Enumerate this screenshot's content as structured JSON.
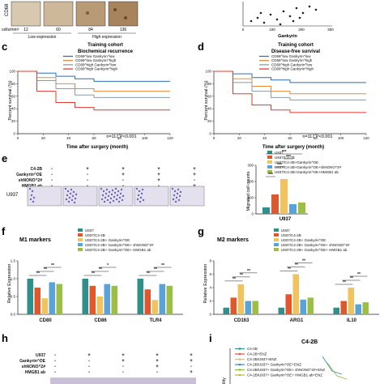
{
  "panels": {
    "top": {
      "ylabel": "CD68",
      "cells_label": "cells/mm²",
      "cell_counts": [
        "12",
        "60",
        "84",
        "136"
      ],
      "group_low": "Low expression",
      "group_high": "High expression",
      "scatter_xlabel": "Gankyrin",
      "scatter_ticks": [
        "0",
        "100",
        "200",
        "300"
      ]
    },
    "c": {
      "letter": "c",
      "title_1": "Training cohort",
      "title_2": "Biochemical recurrence",
      "legend": [
        "CD68^low Gankyrin^low",
        "CD68^low Gankyrin^high",
        "CD68^high Gankyrin^low",
        "CD68^high Gankyrin^high"
      ],
      "ylabel": "Percent survival (%)",
      "xlabel": "Time after surgery (month)",
      "yticks": [
        "0",
        "20",
        "40",
        "60",
        "80",
        "100"
      ],
      "xticks": [
        "0",
        "20",
        "40",
        "60",
        "80",
        "100",
        "120"
      ],
      "annotation": "n=117  P<0.001"
    },
    "d": {
      "letter": "d",
      "title_1": "Training cohort",
      "title_2": "Disease-free survival",
      "legend": [
        "CD68^low Gankyrin^low",
        "CD68^low Gankyrin^high",
        "CD68^high Gankyrin^low",
        "CD68^high Gankyrin^high"
      ],
      "ylabel": "Percent survival (%)",
      "xlabel": "Time after surgery (month)",
      "yticks": [
        "0",
        "20",
        "40",
        "60",
        "80",
        "100"
      ],
      "xticks": [
        "0",
        "20",
        "40",
        "60",
        "80",
        "100",
        "120"
      ],
      "annotation": "n=117  P<0.001"
    },
    "e": {
      "letter": "e",
      "row_labels": [
        "C4-2B",
        "Gankyrin^OE",
        "shNONO^2#",
        "HMGB1 ab"
      ],
      "row_marks": [
        [
          "-",
          "+",
          "+",
          "+",
          "+"
        ],
        [
          "-",
          "-",
          "+",
          "+",
          "+"
        ],
        [
          "-",
          "-",
          "-",
          "+",
          "-"
        ],
        [
          "-",
          "-",
          "-",
          "-",
          "+"
        ]
      ],
      "image_label": "U937",
      "legend": [
        "U937",
        "U937/C4-2B",
        "U937/C4-2B+Gankyrin^OE",
        "U937/C4-2B+Gankyrin^OE+shNONO^2#",
        "U937/C4-2B+Gankyrin^OE+HMGB1 ab"
      ],
      "ylabel": "Migrated cell counts",
      "yticks": [
        "0",
        "100",
        "200",
        "300"
      ],
      "xlabel": "U937",
      "stars": [
        "***",
        "***",
        "***",
        "***"
      ]
    },
    "f": {
      "letter": "f",
      "title": "M1 markers",
      "legend": [
        "U937",
        "U937/C4-2B",
        "U937/C4-2B+ Gankyrin^OE",
        "U937/C4-2B+ Gankyrin^OE+ shNONO^2#",
        "U937/C4-2B+ Gankyrin^OE+ HMGB1 ab"
      ],
      "ylabel": "Relative Expression",
      "yticks": [
        "0.0",
        "0.5",
        "1.0",
        "1.5"
      ],
      "stars": [
        "**",
        "**",
        "**",
        "**",
        "**",
        "*",
        "**",
        "**",
        "**"
      ]
    },
    "g": {
      "letter": "g",
      "title": "M2 markers",
      "legend": [
        "U937",
        "U937/C4-2B",
        "U937/C4-2B+ Gankyrin^OE",
        "U937/C4-2B+ Gankyrin^OE+ shNONO^2#",
        "U937/C4-2B+ Gankyrin^OE+ HMGB1 ab"
      ],
      "ylabel": "Relative Expression",
      "yticks": [
        "0",
        "2",
        "4",
        "6",
        "8"
      ],
      "stars": [
        "**",
        "**",
        "**",
        "**",
        "**",
        "**",
        "**",
        "**",
        "**"
      ]
    },
    "h": {
      "letter": "h",
      "row_labels": [
        "U937",
        "Gankyrin^OE",
        "shNONO^2#",
        "HMGB1 ab"
      ],
      "row_marks": [
        [
          "-",
          "+",
          "+",
          "+",
          "+"
        ],
        [
          "-",
          "-",
          "+",
          "+",
          "+"
        ],
        [
          "-",
          "-",
          "-",
          "+",
          "-"
        ],
        [
          "-",
          "-",
          "-",
          "-",
          "+"
        ]
      ]
    },
    "i": {
      "letter": "i",
      "title": "C4-2B",
      "legend": [
        "C4-2B",
        "C4-2B+ENZ",
        "C4-2B/U937+ENZ",
        "C4-2B/U937+ Gankyrin^OE+ENZ",
        "C4-2B/U937+ Gankyrin^OE+ shNONO^2#+ENZ",
        "C4-2B/U937+ Gankyrin^OE+ HMGB1 ab+ENZ"
      ],
      "ylabel": "ility"
    }
  },
  "colors": {
    "low_low": "#2c6fb5",
    "low_high": "#e8893a",
    "high_low": "#8a9aa8",
    "high_high": "#e23b2e",
    "bar1": "#2f8f8a",
    "bar2": "#e0572d",
    "bar3": "#f2c25c",
    "bar4": "#5aa3d8",
    "bar5": "#9bbf45",
    "i1": "#2f8f8a",
    "i2": "#e0572d",
    "i3": "#f2b84b",
    "i4": "#3a86c8",
    "i5": "#8fb83e",
    "i6": "#c9b23a",
    "tissue": "#d9c8b0",
    "transwell": "#6a6ab0"
  },
  "chart_data": [
    {
      "panel": "c",
      "type": "line",
      "title": "Training cohort Biochemical recurrence",
      "xlabel": "Time after surgery (month)",
      "ylabel": "Percent survival (%)",
      "xlim": [
        0,
        120
      ],
      "ylim": [
        0,
        100
      ],
      "series": [
        {
          "name": "CD68^low Gankyrin^low",
          "x": [
            0,
            15,
            30,
            45,
            60,
            120
          ],
          "y": [
            100,
            97,
            92,
            88,
            84,
            84
          ]
        },
        {
          "name": "CD68^low Gankyrin^high",
          "x": [
            0,
            15,
            30,
            45,
            60,
            120
          ],
          "y": [
            100,
            90,
            80,
            72,
            68,
            68
          ]
        },
        {
          "name": "CD68^high Gankyrin^low",
          "x": [
            0,
            15,
            30,
            45,
            60,
            120
          ],
          "y": [
            100,
            85,
            72,
            62,
            58,
            58
          ]
        },
        {
          "name": "CD68^high Gankyrin^high",
          "x": [
            0,
            15,
            30,
            45,
            60,
            120
          ],
          "y": [
            100,
            68,
            50,
            42,
            38,
            38
          ]
        }
      ]
    },
    {
      "panel": "d",
      "type": "line",
      "title": "Training cohort Disease-free survival",
      "xlabel": "Time after surgery (month)",
      "ylabel": "Percent survival (%)",
      "xlim": [
        0,
        120
      ],
      "ylim": [
        0,
        100
      ],
      "series": [
        {
          "name": "CD68^low Gankyrin^low",
          "x": [
            0,
            15,
            30,
            45,
            60,
            120
          ],
          "y": [
            100,
            96,
            90,
            86,
            82,
            82
          ]
        },
        {
          "name": "CD68^low Gankyrin^high",
          "x": [
            0,
            15,
            30,
            45,
            60,
            120
          ],
          "y": [
            100,
            88,
            76,
            68,
            64,
            64
          ]
        },
        {
          "name": "CD68^high Gankyrin^low",
          "x": [
            0,
            15,
            30,
            45,
            60,
            120
          ],
          "y": [
            100,
            82,
            68,
            58,
            54,
            54
          ]
        },
        {
          "name": "CD68^high Gankyrin^high",
          "x": [
            0,
            15,
            30,
            45,
            60,
            120
          ],
          "y": [
            100,
            64,
            46,
            38,
            34,
            34
          ]
        }
      ]
    },
    {
      "panel": "e",
      "type": "bar",
      "xlabel": "U937",
      "ylabel": "Migrated cell counts",
      "ylim": [
        0,
        300
      ],
      "series": [
        {
          "name": "U937",
          "values": [
            40
          ]
        },
        {
          "name": "U937/C4-2B",
          "values": [
            120
          ]
        },
        {
          "name": "U937/C4-2B+Gankyrin^OE",
          "values": [
            215
          ]
        },
        {
          "name": "U937/C4-2B+Gankyrin^OE+shNONO^2#",
          "values": [
            60
          ]
        },
        {
          "name": "U937/C4-2B+Gankyrin^OE+HMGB1 ab",
          "values": [
            70
          ]
        }
      ]
    },
    {
      "panel": "f",
      "type": "bar",
      "title": "M1 markers",
      "ylabel": "Relative Expression",
      "ylim": [
        0,
        1.5
      ],
      "categories": [
        "CD80",
        "CD86",
        "TLR4"
      ],
      "series": [
        {
          "name": "U937",
          "values": [
            1.0,
            1.0,
            1.0
          ]
        },
        {
          "name": "U937/C4-2B",
          "values": [
            0.75,
            0.8,
            0.7
          ]
        },
        {
          "name": "U937/C4-2B+ Gankyrin^OE",
          "values": [
            0.45,
            0.5,
            0.4
          ]
        },
        {
          "name": "U937/C4-2B+ Gankyrin^OE+ shNONO^2#",
          "values": [
            0.9,
            0.85,
            0.85
          ]
        },
        {
          "name": "U937/C4-2B+ Gankyrin^OE+ HMGB1 ab",
          "values": [
            0.85,
            0.8,
            0.8
          ]
        }
      ]
    },
    {
      "panel": "g",
      "type": "bar",
      "title": "M2 markers",
      "ylabel": "Relative Expression",
      "ylim": [
        0,
        8
      ],
      "categories": [
        "CD163",
        "ARG1",
        "IL10"
      ],
      "series": [
        {
          "name": "U937",
          "values": [
            1.0,
            1.0,
            1.0
          ]
        },
        {
          "name": "U937/C4-2B",
          "values": [
            2.5,
            3.0,
            2.0
          ]
        },
        {
          "name": "U937/C4-2B+ Gankyrin^OE",
          "values": [
            4.5,
            6.0,
            4.0
          ]
        },
        {
          "name": "U937/C4-2B+ Gankyrin^OE+ shNONO^2#",
          "values": [
            2.0,
            2.2,
            1.5
          ]
        },
        {
          "name": "U937/C4-2B+ Gankyrin^OE+ HMGB1 ab",
          "values": [
            2.0,
            2.5,
            1.8
          ]
        }
      ]
    }
  ]
}
